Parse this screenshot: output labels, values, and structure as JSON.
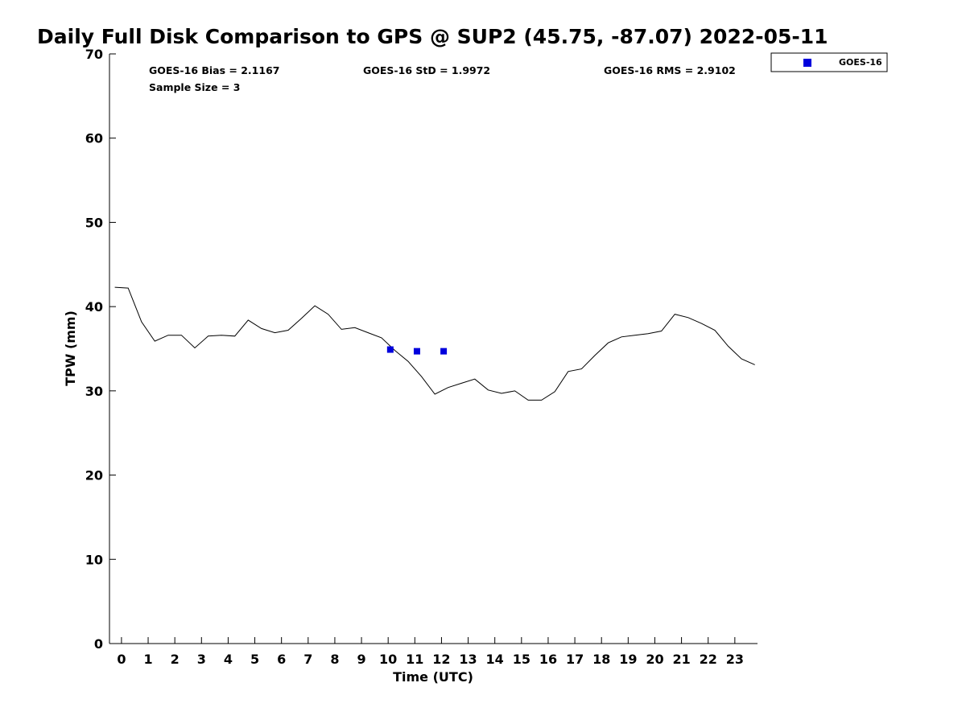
{
  "chart_data": {
    "type": "line",
    "title": "Daily Full Disk Comparison to GPS @ SUP2 (45.75, -87.07) 2022-05-11",
    "xlabel": "Time (UTC)",
    "ylabel": "TPW (mm)",
    "xlim": [
      -0.45,
      23.85
    ],
    "ylim": [
      0,
      70
    ],
    "x_ticks": [
      0,
      1,
      2,
      3,
      4,
      5,
      6,
      7,
      8,
      9,
      10,
      11,
      12,
      13,
      14,
      15,
      16,
      17,
      18,
      19,
      20,
      21,
      22,
      23
    ],
    "x_tick_labels": [
      "0",
      "1",
      "2",
      "3",
      "4",
      "5",
      "6",
      "7",
      "8",
      "9",
      "10",
      "11",
      "12",
      "13",
      "14",
      "15",
      "16",
      "17",
      "18",
      "19",
      "20",
      "21",
      "22",
      "23"
    ],
    "y_ticks": [
      0,
      10,
      20,
      30,
      40,
      50,
      60,
      70
    ],
    "y_tick_labels": [
      "0",
      "10",
      "20",
      "30",
      "40",
      "50",
      "60",
      "70"
    ],
    "gps_series": {
      "name": "GPS",
      "color": "#000000",
      "x": [
        -0.25,
        0.25,
        0.75,
        1.25,
        1.75,
        2.25,
        2.75,
        3.25,
        3.75,
        4.25,
        4.75,
        5.25,
        5.75,
        6.25,
        6.75,
        7.25,
        7.75,
        8.25,
        8.75,
        9.25,
        9.75,
        10.25,
        10.75,
        11.25,
        11.75,
        12.25,
        12.75,
        13.25,
        13.75,
        14.25,
        14.75,
        15.25,
        15.75,
        16.25,
        16.75,
        17.25,
        17.75,
        18.25,
        18.75,
        19.25,
        19.75,
        20.25,
        20.75,
        21.25,
        21.75,
        22.25,
        22.75,
        23.25,
        23.75
      ],
      "y": [
        42.3,
        42.2,
        38.2,
        35.9,
        36.6,
        36.6,
        35.1,
        36.5,
        36.6,
        36.5,
        38.4,
        37.4,
        36.9,
        37.2,
        38.6,
        40.1,
        39.1,
        37.3,
        37.5,
        36.9,
        36.3,
        34.8,
        33.5,
        31.7,
        29.6,
        30.4,
        30.9,
        31.4,
        30.1,
        29.7,
        30.0,
        28.9,
        28.9,
        29.9,
        32.3,
        32.6,
        34.2,
        35.7,
        36.4,
        36.6,
        36.8,
        37.1,
        39.1,
        38.7,
        38.0,
        37.2,
        35.3,
        33.8,
        33.1
      ]
    },
    "series": [
      {
        "name": "GOES-16",
        "color": "#0000dd",
        "marker": "square",
        "x": [
          10.08,
          11.08,
          12.08
        ],
        "y": [
          34.9,
          34.7,
          34.7
        ]
      }
    ],
    "stats": {
      "bias": "GOES-16 Bias = 2.1167",
      "std": "GOES-16 StD = 1.9972",
      "rms": "GOES-16 RMS = 2.9102",
      "sample": "Sample Size = 3"
    },
    "legend": {
      "position": "top-right-outside",
      "label": "GOES-16"
    }
  }
}
